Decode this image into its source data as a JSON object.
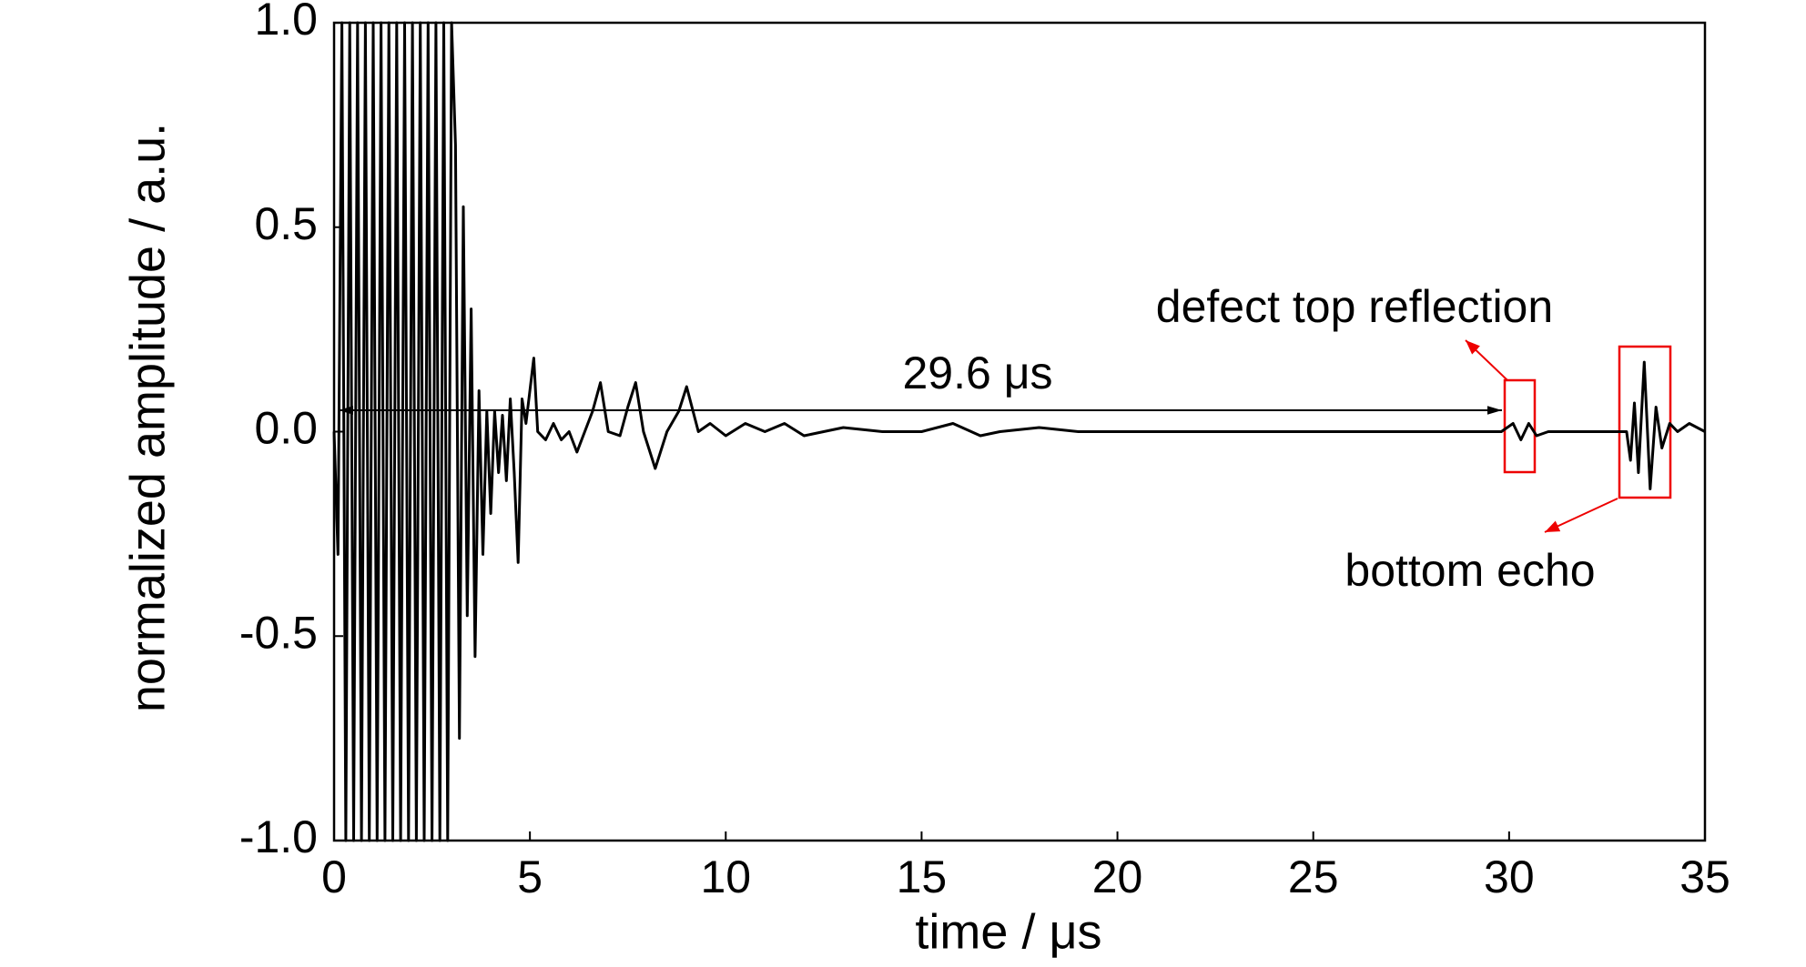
{
  "chart_data": {
    "type": "line",
    "x_label": "time / μs",
    "y_label": "normalized amplitude / a.u.",
    "color": "#000000",
    "xlim": [
      0,
      35
    ],
    "ylim": [
      -1,
      1
    ],
    "xticks": [
      0,
      5,
      10,
      15,
      20,
      25,
      30,
      35
    ],
    "yticks": [
      {
        "value": -1,
        "label": "-1.0"
      },
      -0.5,
      {
        "value": 0,
        "label": "0.0"
      },
      0.5,
      {
        "value": 1,
        "label": "1.0"
      }
    ],
    "grid": false,
    "annotations": [
      "29.6 μs",
      "defect top reflection",
      "bottom echo"
    ],
    "x": [
      0,
      0.1,
      0.2,
      0.3,
      0.4,
      0.5,
      0.6,
      0.7,
      0.8,
      0.9,
      1.0,
      1.1,
      1.2,
      1.3,
      1.4,
      1.5,
      1.6,
      1.7,
      1.8,
      1.9,
      2.0,
      2.1,
      2.2,
      2.3,
      2.4,
      2.5,
      2.6,
      2.7,
      2.8,
      2.9,
      3.0,
      3.1,
      3.2,
      3.3,
      3.4,
      3.5,
      3.6,
      3.7,
      3.8,
      3.9,
      4.0,
      4.1,
      4.2,
      4.3,
      4.4,
      4.5,
      4.6,
      4.7,
      4.8,
      4.9,
      5.0,
      5.1,
      5.2,
      5.4,
      5.6,
      5.8,
      6.0,
      6.2,
      6.4,
      6.6,
      6.8,
      7.0,
      7.3,
      7.5,
      7.7,
      7.9,
      8.2,
      8.5,
      8.8,
      9.0,
      9.3,
      9.6,
      10,
      10.5,
      11,
      11.5,
      12,
      13,
      14,
      15,
      15.8,
      16.5,
      17,
      18,
      19,
      20,
      22,
      24,
      26,
      28,
      29.8,
      30.1,
      30.3,
      30.5,
      30.7,
      31,
      32,
      33,
      33.1,
      33.2,
      33.3,
      33.45,
      33.6,
      33.75,
      33.9,
      34.1,
      34.3,
      34.6,
      35
    ],
    "values": [
      0,
      -0.3,
      1,
      -1,
      1,
      -1,
      1,
      -1,
      1,
      -1,
      1,
      -1,
      1,
      -1,
      1,
      -1,
      1,
      -1,
      1,
      -1,
      1,
      -1,
      1,
      -1,
      1,
      -1,
      1,
      -1,
      1,
      -1,
      1,
      0.7,
      -0.75,
      0.55,
      -0.45,
      0.3,
      -0.55,
      0.1,
      -0.3,
      0.05,
      -0.2,
      0.05,
      -0.1,
      0.04,
      -0.12,
      0.08,
      -0.1,
      -0.32,
      0.08,
      0.02,
      0.1,
      0.18,
      0.0,
      -0.02,
      0.02,
      -0.02,
      0.0,
      -0.05,
      0.0,
      0.05,
      0.12,
      0.0,
      -0.01,
      0.06,
      0.12,
      0.0,
      -0.09,
      0.0,
      0.05,
      0.11,
      0.0,
      0.02,
      -0.01,
      0.02,
      0.0,
      0.02,
      -0.01,
      0.01,
      0.0,
      0.0,
      0.02,
      -0.01,
      0.0,
      0.01,
      0.0,
      0.0,
      0.0,
      0.0,
      0.0,
      0.0,
      0.0,
      0.02,
      -0.02,
      0.02,
      -0.01,
      0.0,
      0.0,
      0.0,
      -0.07,
      0.07,
      -0.1,
      0.17,
      -0.14,
      0.06,
      -0.04,
      0.02,
      0.0,
      0.02,
      0.0
    ]
  }
}
